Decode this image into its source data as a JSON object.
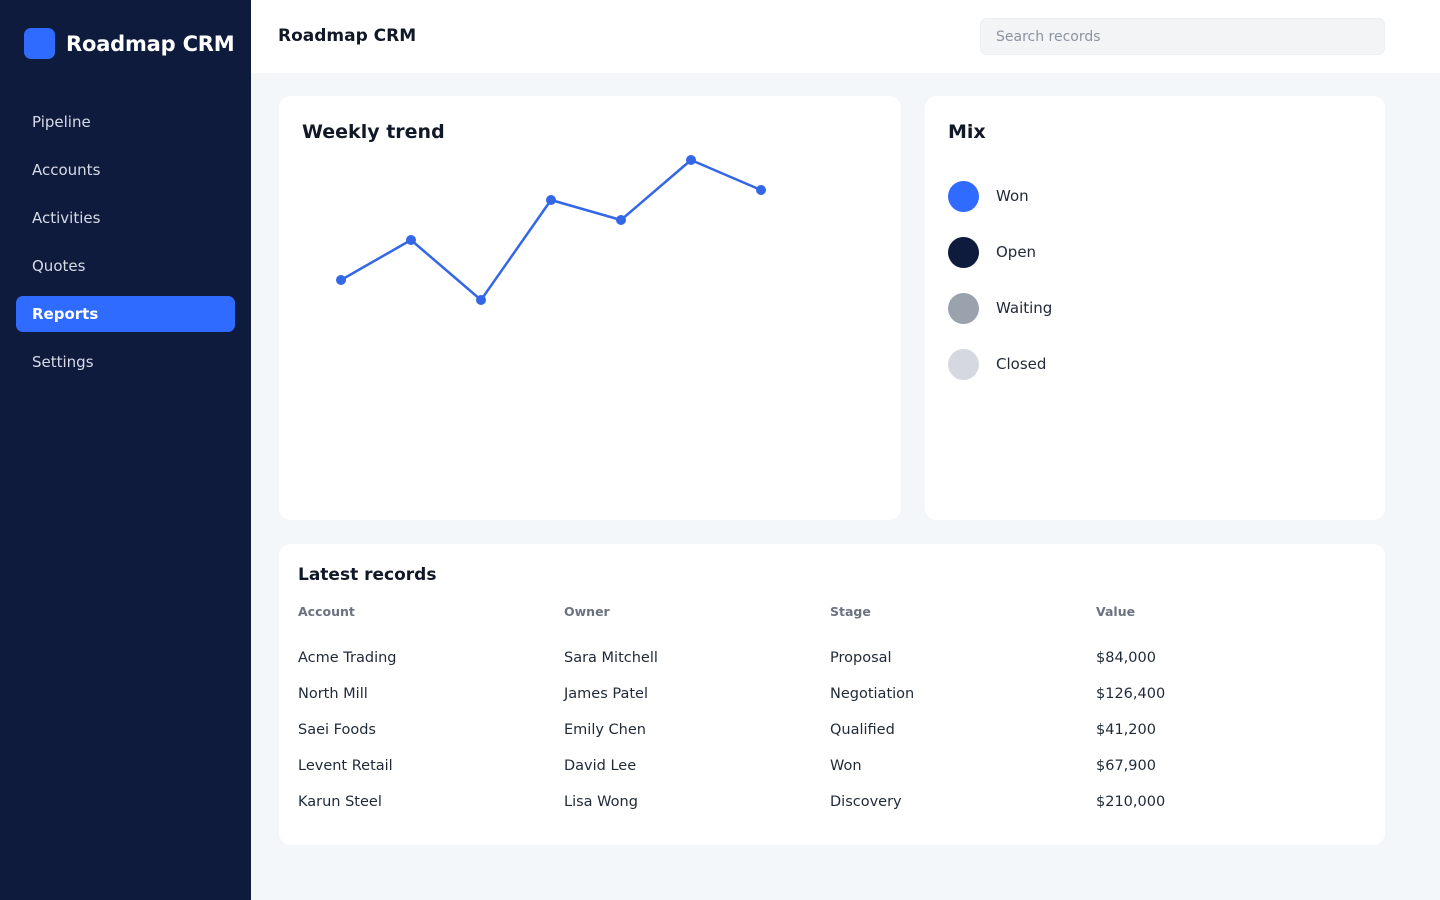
{
  "app": {
    "name": "Roadmap CRM"
  },
  "sidebar": {
    "items": [
      {
        "label": "Pipeline"
      },
      {
        "label": "Accounts"
      },
      {
        "label": "Activities"
      },
      {
        "label": "Quotes"
      },
      {
        "label": "Reports",
        "active": true
      },
      {
        "label": "Settings"
      }
    ]
  },
  "header": {
    "title": "Roadmap CRM",
    "search_placeholder": "Search records"
  },
  "trend": {
    "title": "Weekly trend",
    "color": "#3467e6"
  },
  "chart_data": {
    "type": "line",
    "title": "Weekly trend",
    "x": [
      1,
      2,
      3,
      4,
      5,
      6,
      7
    ],
    "series": [
      {
        "values": [
          12,
          14,
          11,
          16,
          15,
          18,
          16.5
        ]
      }
    ],
    "ylim": [
      0,
      20
    ],
    "grid": false,
    "color": "#3467e6"
  },
  "mix": {
    "title": "Mix",
    "items": [
      {
        "label": "Won",
        "color": "#2f6bff"
      },
      {
        "label": "Open",
        "color": "#0f1b3d"
      },
      {
        "label": "Waiting",
        "color": "#9aa2ae"
      },
      {
        "label": "Closed",
        "color": "#d5d9df"
      }
    ]
  },
  "records": {
    "title": "Latest records",
    "columns": [
      "Account",
      "Owner",
      "Stage",
      "Value"
    ],
    "rows": [
      [
        "Acme Trading",
        "Sara Mitchell",
        "Proposal",
        "$84,000"
      ],
      [
        "North Mill",
        "James Patel",
        "Negotiation",
        "$126,400"
      ],
      [
        "Saei Foods",
        "Emily Chen",
        "Qualified",
        "$41,200"
      ],
      [
        "Levent Retail",
        "David Lee",
        "Won",
        "$67,900"
      ],
      [
        "Karun Steel",
        "Lisa Wong",
        "Discovery",
        "$210,000"
      ]
    ]
  },
  "colors": {
    "sidebar_bg": "#0f1b3d",
    "accent": "#2f6bff",
    "page_bg": "#f4f7fa"
  }
}
